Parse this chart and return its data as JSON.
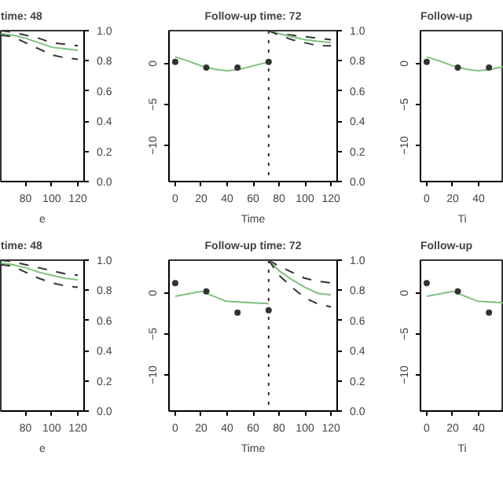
{
  "chart_data": [
    {
      "type": "line",
      "title": "time: 48",
      "xlabel": "e",
      "xlim": [
        61,
        124.8
      ],
      "xticks": [
        80,
        100,
        120
      ],
      "y2lim": [
        0,
        1
      ],
      "y2ticks": [
        {
          "value": 0,
          "label": "0.0"
        },
        {
          "value": 0.2,
          "label": "0.2"
        },
        {
          "value": 0.4,
          "label": "0.4"
        },
        {
          "value": 0.6,
          "label": "0.6"
        },
        {
          "value": 0.8,
          "label": "0.8"
        },
        {
          "value": 1,
          "label": "1.0"
        }
      ],
      "series": [
        {
          "axis": "y2",
          "color": "#333333",
          "line_style": "dashed",
          "x": [
            61,
            70,
            80,
            90,
            100,
            110,
            120
          ],
          "values": [
            1,
            0.99,
            0.97,
            0.95,
            0.92,
            0.91,
            0.9
          ]
        },
        {
          "axis": "y2",
          "color": "#7fbf7f",
          "line_style": "solid",
          "x": [
            61,
            70,
            80,
            90,
            100,
            110,
            120
          ],
          "values": [
            0.98,
            0.97,
            0.95,
            0.92,
            0.89,
            0.88,
            0.87
          ]
        },
        {
          "axis": "y2",
          "color": "#333333",
          "line_style": "dashed",
          "x": [
            61,
            70,
            80,
            90,
            100,
            110,
            120
          ],
          "values": [
            0.97,
            0.96,
            0.92,
            0.88,
            0.84,
            0.82,
            0.81
          ]
        }
      ]
    },
    {
      "type": "line",
      "title": "Follow-up time: 72",
      "xlabel": "Time",
      "xlim": [
        -4.8,
        124.8
      ],
      "xticks": [
        0,
        20,
        40,
        60,
        80,
        100,
        120
      ],
      "ylim": [
        -14.4,
        4
      ],
      "yticks": [
        0,
        -5,
        -10
      ],
      "y2lim": [
        0,
        1
      ],
      "y2ticks": [
        {
          "value": 0,
          "label": "0.0"
        },
        {
          "value": 0.2,
          "label": "0.2"
        },
        {
          "value": 0.4,
          "label": "0.4"
        },
        {
          "value": 0.6,
          "label": "0.6"
        },
        {
          "value": 0.8,
          "label": "0.8"
        },
        {
          "value": 1,
          "label": "1.0"
        }
      ],
      "ref_lines": [
        {
          "axis": "x",
          "value": 72,
          "line_style": "dotted",
          "color": "#333333"
        }
      ],
      "series": [
        {
          "color": "#7fbf7f",
          "line_style": "solid",
          "x": [
            0,
            10,
            20,
            30,
            40,
            50,
            60,
            72
          ],
          "values": [
            0.8,
            0.3,
            -0.3,
            -0.7,
            -0.9,
            -0.7,
            -0.3,
            0.2
          ]
        },
        {
          "type": "scatter",
          "marker": "circle",
          "color": "#333333",
          "x": [
            0,
            24,
            48,
            72
          ],
          "values": [
            0.2,
            -0.5,
            -0.5,
            0.2
          ]
        },
        {
          "axis": "y2",
          "color": "#333333",
          "line_style": "dashed",
          "x": [
            72,
            80,
            90,
            100,
            110,
            120
          ],
          "values": [
            1,
            0.98,
            0.97,
            0.96,
            0.95,
            0.94
          ]
        },
        {
          "axis": "y2",
          "color": "#7fbf7f",
          "line_style": "solid",
          "x": [
            72,
            80,
            90,
            100,
            110,
            120
          ],
          "values": [
            1,
            0.98,
            0.96,
            0.94,
            0.93,
            0.92
          ]
        },
        {
          "axis": "y2",
          "color": "#333333",
          "line_style": "dashed",
          "x": [
            72,
            80,
            90,
            100,
            110,
            120
          ],
          "values": [
            1,
            0.97,
            0.94,
            0.92,
            0.9,
            0.9
          ]
        }
      ]
    },
    {
      "type": "line",
      "title": "Follow-up",
      "xlabel": "Ti",
      "xlim": [
        -4.8,
        59.4
      ],
      "xticks": [
        0,
        20,
        40
      ],
      "ylim": [
        -14.4,
        4
      ],
      "yticks": [
        0,
        -5,
        -10
      ],
      "series": [
        {
          "color": "#7fbf7f",
          "line_style": "solid",
          "x": [
            0,
            10,
            20,
            30,
            40,
            50,
            59
          ],
          "values": [
            0.8,
            0.3,
            -0.3,
            -0.7,
            -0.9,
            -0.7,
            -0.4
          ]
        },
        {
          "type": "scatter",
          "marker": "circle",
          "color": "#333333",
          "x": [
            0,
            24,
            48
          ],
          "values": [
            0.2,
            -0.5,
            -0.5
          ]
        }
      ]
    },
    {
      "type": "line",
      "title": "time: 48",
      "xlabel": "e",
      "xlim": [
        61,
        124.8
      ],
      "xticks": [
        80,
        100,
        120
      ],
      "y2lim": [
        0,
        1
      ],
      "y2ticks": [
        {
          "value": 0,
          "label": "0.0"
        },
        {
          "value": 0.2,
          "label": "0.2"
        },
        {
          "value": 0.4,
          "label": "0.4"
        },
        {
          "value": 0.6,
          "label": "0.6"
        },
        {
          "value": 0.8,
          "label": "0.8"
        },
        {
          "value": 1,
          "label": "1.0"
        }
      ],
      "series": [
        {
          "axis": "y2",
          "color": "#333333",
          "line_style": "dashed",
          "x": [
            61,
            70,
            80,
            90,
            100,
            110,
            120
          ],
          "values": [
            1,
            0.99,
            0.97,
            0.95,
            0.93,
            0.91,
            0.9
          ]
        },
        {
          "axis": "y2",
          "color": "#7fbf7f",
          "line_style": "solid",
          "x": [
            61,
            70,
            80,
            90,
            100,
            110,
            120
          ],
          "values": [
            0.98,
            0.97,
            0.95,
            0.92,
            0.9,
            0.88,
            0.87
          ]
        },
        {
          "axis": "y2",
          "color": "#333333",
          "line_style": "dashed",
          "x": [
            61,
            70,
            80,
            90,
            100,
            110,
            120
          ],
          "values": [
            0.97,
            0.96,
            0.92,
            0.88,
            0.85,
            0.83,
            0.82
          ]
        }
      ]
    },
    {
      "type": "line",
      "title": "Follow-up time: 72",
      "xlabel": "Time",
      "xlim": [
        -4.8,
        124.8
      ],
      "xticks": [
        0,
        20,
        40,
        60,
        80,
        100,
        120
      ],
      "ylim": [
        -14.4,
        4
      ],
      "yticks": [
        0,
        -5,
        -10
      ],
      "y2lim": [
        0,
        1
      ],
      "y2ticks": [
        {
          "value": 0,
          "label": "0.0"
        },
        {
          "value": 0.2,
          "label": "0.2"
        },
        {
          "value": 0.4,
          "label": "0.4"
        },
        {
          "value": 0.6,
          "label": "0.6"
        },
        {
          "value": 0.8,
          "label": "0.8"
        },
        {
          "value": 1,
          "label": "1.0"
        }
      ],
      "ref_lines": [
        {
          "axis": "x",
          "value": 72,
          "line_style": "dotted",
          "color": "#333333"
        }
      ],
      "series": [
        {
          "color": "#7fbf7f",
          "line_style": "solid",
          "x": [
            0,
            20,
            39,
            59,
            72
          ],
          "values": [
            -0.4,
            0.2,
            -1,
            -1.2,
            -1.3
          ]
        },
        {
          "type": "scatter",
          "marker": "circle",
          "color": "#333333",
          "x": [
            0,
            24,
            48,
            72
          ],
          "values": [
            1.2,
            0.2,
            -2.4,
            -2.1
          ]
        },
        {
          "axis": "y2",
          "color": "#333333",
          "line_style": "dashed",
          "x": [
            72,
            80,
            90,
            100,
            110,
            120
          ],
          "values": [
            1,
            0.96,
            0.92,
            0.88,
            0.86,
            0.85
          ]
        },
        {
          "axis": "y2",
          "color": "#7fbf7f",
          "line_style": "solid",
          "x": [
            72,
            80,
            90,
            100,
            110,
            120
          ],
          "values": [
            1,
            0.93,
            0.87,
            0.82,
            0.78,
            0.77
          ]
        },
        {
          "axis": "y2",
          "color": "#333333",
          "line_style": "dashed",
          "x": [
            72,
            80,
            90,
            100,
            110,
            120
          ],
          "values": [
            1,
            0.9,
            0.82,
            0.75,
            0.71,
            0.69
          ]
        }
      ]
    },
    {
      "type": "line",
      "title": "Follow-up",
      "xlabel": "Ti",
      "xlim": [
        -4.8,
        59.4
      ],
      "xticks": [
        0,
        20,
        40
      ],
      "ylim": [
        -14.4,
        4
      ],
      "yticks": [
        0,
        -5,
        -10
      ],
      "series": [
        {
          "color": "#7fbf7f",
          "line_style": "solid",
          "x": [
            0,
            20,
            39,
            59
          ],
          "values": [
            -0.4,
            0.2,
            -1,
            -1.2
          ]
        },
        {
          "type": "scatter",
          "marker": "circle",
          "color": "#333333",
          "x": [
            0,
            24,
            48
          ],
          "values": [
            1.2,
            0.2,
            -2.4
          ]
        }
      ]
    }
  ]
}
